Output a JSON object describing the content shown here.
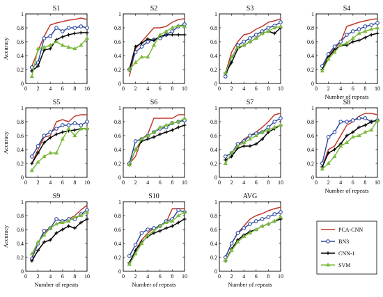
{
  "figure": {
    "y_axis_label": "Accuracy",
    "x_axis_label": "Number of repeats"
  },
  "legend": [
    {
      "name": "PCA-CNN",
      "color": "#c0392b",
      "marker": "none"
    },
    {
      "name": "BN3",
      "color": "#2e4a9e",
      "marker": "circle"
    },
    {
      "name": "CNN-1",
      "color": "#000000",
      "marker": "plus"
    },
    {
      "name": "SVM",
      "color": "#7dbb3f",
      "marker": "triangle"
    }
  ],
  "chart_data": [
    {
      "type": "line",
      "title": "S1",
      "x": [
        1,
        2,
        3,
        4,
        5,
        6,
        7,
        8,
        9,
        10
      ],
      "xlim": [
        0,
        10
      ],
      "ylim": [
        0,
        1
      ],
      "xticks": [
        "0",
        "2",
        "4",
        "6",
        "8",
        "10"
      ],
      "yticks": [
        "0",
        "0.2",
        "0.4",
        "0.6",
        "0.8",
        "1"
      ],
      "series": [
        {
          "name": "PCA-CNN",
          "values": [
            0.25,
            0.47,
            0.68,
            0.84,
            0.87,
            0.89,
            0.91,
            0.92,
            0.94,
            0.92
          ]
        },
        {
          "name": "BN3",
          "values": [
            0.23,
            0.3,
            0.65,
            0.68,
            0.8,
            0.75,
            0.8,
            0.8,
            0.82,
            0.8
          ]
        },
        {
          "name": "CNN-1",
          "values": [
            0.18,
            0.25,
            0.48,
            0.5,
            0.63,
            0.67,
            0.7,
            0.72,
            0.73,
            0.73
          ]
        },
        {
          "name": "SVM",
          "values": [
            0.1,
            0.5,
            0.52,
            0.55,
            0.6,
            0.55,
            0.52,
            0.5,
            0.55,
            0.65
          ]
        }
      ]
    },
    {
      "type": "line",
      "title": "S2",
      "x": [
        1,
        2,
        3,
        4,
        5,
        6,
        7,
        8,
        9,
        10
      ],
      "xlim": [
        0,
        10
      ],
      "ylim": [
        0,
        1
      ],
      "xticks": [
        "0",
        "2",
        "4",
        "6",
        "8",
        "10"
      ],
      "yticks": [
        "0",
        "0.2",
        "0.4",
        "0.6",
        "0.8",
        "1"
      ],
      "series": [
        {
          "name": "PCA-CNN",
          "values": [
            0.1,
            0.5,
            0.6,
            0.7,
            0.8,
            0.8,
            0.82,
            0.88,
            0.92,
            0.93
          ]
        },
        {
          "name": "BN3",
          "values": [
            0.2,
            0.45,
            0.53,
            0.6,
            0.63,
            0.65,
            0.7,
            0.75,
            0.82,
            0.85
          ]
        },
        {
          "name": "CNN-1",
          "values": [
            0.2,
            0.53,
            0.58,
            0.64,
            0.62,
            0.68,
            0.7,
            0.7,
            0.7,
            0.7
          ]
        },
        {
          "name": "SVM",
          "values": [
            0.2,
            0.3,
            0.38,
            0.38,
            0.55,
            0.7,
            0.75,
            0.8,
            0.83,
            0.82
          ]
        }
      ]
    },
    {
      "type": "line",
      "title": "S3",
      "x": [
        1,
        2,
        3,
        4,
        5,
        6,
        7,
        8,
        9,
        10
      ],
      "xlim": [
        0,
        10
      ],
      "ylim": [
        0,
        1
      ],
      "xticks": [
        "0",
        "2",
        "4",
        "6",
        "8",
        "10"
      ],
      "yticks": [
        "0",
        "0.2",
        "0.4",
        "0.6",
        "0.8",
        "1"
      ],
      "series": [
        {
          "name": "PCA-CNN",
          "values": [
            0.15,
            0.45,
            0.6,
            0.7,
            0.72,
            0.78,
            0.82,
            0.88,
            0.9,
            0.93
          ]
        },
        {
          "name": "BN3",
          "values": [
            0.1,
            0.35,
            0.55,
            0.6,
            0.65,
            0.7,
            0.75,
            0.8,
            0.83,
            0.88
          ]
        },
        {
          "name": "CNN-1",
          "values": [
            0.15,
            0.3,
            0.5,
            0.55,
            0.6,
            0.65,
            0.72,
            0.75,
            0.72,
            0.8
          ]
        },
        {
          "name": "SVM",
          "values": [
            0.15,
            0.38,
            0.52,
            0.55,
            0.6,
            0.65,
            0.72,
            0.75,
            0.8,
            0.82
          ]
        }
      ]
    },
    {
      "type": "line",
      "title": "S4",
      "x": [
        1,
        2,
        3,
        4,
        5,
        6,
        7,
        8,
        9,
        10
      ],
      "xlim": [
        0,
        10
      ],
      "ylim": [
        0,
        1
      ],
      "xticks": [
        "0",
        "2",
        "4",
        "6",
        "8",
        "10"
      ],
      "yticks": [
        "0",
        "0.2",
        "0.4",
        "0.6",
        "0.8",
        "1"
      ],
      "series": [
        {
          "name": "PCA-CNN",
          "values": [
            0.25,
            0.4,
            0.5,
            0.6,
            0.82,
            0.85,
            0.88,
            0.9,
            0.92,
            0.93
          ]
        },
        {
          "name": "BN3",
          "values": [
            0.25,
            0.42,
            0.53,
            0.6,
            0.7,
            0.75,
            0.78,
            0.82,
            0.84,
            0.87
          ]
        },
        {
          "name": "CNN-1",
          "values": [
            0.2,
            0.38,
            0.48,
            0.55,
            0.55,
            0.6,
            0.62,
            0.66,
            0.7,
            0.72
          ]
        },
        {
          "name": "SVM",
          "values": [
            0.18,
            0.35,
            0.45,
            0.55,
            0.58,
            0.65,
            0.72,
            0.75,
            0.78,
            0.8
          ]
        }
      ]
    },
    {
      "type": "line",
      "title": "S5",
      "x": [
        1,
        2,
        3,
        4,
        5,
        6,
        7,
        8,
        9,
        10
      ],
      "xlim": [
        0,
        10
      ],
      "ylim": [
        0,
        1
      ],
      "xticks": [
        "0",
        "2",
        "4",
        "6",
        "8",
        "10"
      ],
      "yticks": [
        "0",
        "0.2",
        "0.4",
        "0.6",
        "0.8",
        "1"
      ],
      "series": [
        {
          "name": "PCA-CNN",
          "values": [
            0.2,
            0.4,
            0.58,
            0.6,
            0.8,
            0.83,
            0.8,
            0.88,
            0.9,
            0.9
          ]
        },
        {
          "name": "BN3",
          "values": [
            0.3,
            0.45,
            0.6,
            0.65,
            0.7,
            0.75,
            0.75,
            0.78,
            0.75,
            0.8
          ]
        },
        {
          "name": "CNN-1",
          "values": [
            0.2,
            0.35,
            0.5,
            0.57,
            0.62,
            0.65,
            0.67,
            0.68,
            0.7,
            0.7
          ]
        },
        {
          "name": "SVM",
          "values": [
            0.1,
            0.22,
            0.3,
            0.35,
            0.35,
            0.55,
            0.7,
            0.6,
            0.7,
            0.7
          ]
        }
      ]
    },
    {
      "type": "line",
      "title": "S6",
      "x": [
        1,
        2,
        3,
        4,
        5,
        6,
        7,
        8,
        9,
        10
      ],
      "xlim": [
        0,
        10
      ],
      "ylim": [
        0,
        1
      ],
      "xticks": [
        "0",
        "2",
        "4",
        "6",
        "8",
        "10"
      ],
      "yticks": [
        "0",
        "0.2",
        "0.4",
        "0.6",
        "0.8",
        "1"
      ],
      "series": [
        {
          "name": "PCA-CNN",
          "values": [
            0.2,
            0.3,
            0.55,
            0.62,
            0.85,
            0.85,
            0.85,
            0.85,
            0.9,
            0.9
          ]
        },
        {
          "name": "BN3",
          "values": [
            0.2,
            0.52,
            0.55,
            0.6,
            0.65,
            0.7,
            0.72,
            0.78,
            0.8,
            0.82
          ]
        },
        {
          "name": "CNN-1",
          "values": [
            0.18,
            0.4,
            0.52,
            0.55,
            0.58,
            0.62,
            0.65,
            0.68,
            0.72,
            0.75
          ]
        },
        {
          "name": "SVM",
          "values": [
            0.18,
            0.4,
            0.55,
            0.6,
            0.65,
            0.72,
            0.75,
            0.78,
            0.8,
            0.85
          ]
        }
      ]
    },
    {
      "type": "line",
      "title": "S7",
      "x": [
        1,
        2,
        3,
        4,
        5,
        6,
        7,
        8,
        9,
        10
      ],
      "xlim": [
        0,
        10
      ],
      "ylim": [
        0,
        1
      ],
      "xticks": [
        "0",
        "2",
        "4",
        "6",
        "8",
        "10"
      ],
      "yticks": [
        "0",
        "0.2",
        "0.4",
        "0.6",
        "0.8",
        "1"
      ],
      "series": [
        {
          "name": "PCA-CNN",
          "values": [
            0.3,
            0.35,
            0.45,
            0.55,
            0.6,
            0.65,
            0.72,
            0.8,
            0.9,
            0.92
          ]
        },
        {
          "name": "BN3",
          "values": [
            0.3,
            0.35,
            0.48,
            0.52,
            0.6,
            0.63,
            0.65,
            0.72,
            0.8,
            0.85
          ]
        },
        {
          "name": "CNN-1",
          "values": [
            0.25,
            0.3,
            0.42,
            0.45,
            0.45,
            0.48,
            0.55,
            0.65,
            0.7,
            0.75
          ]
        },
        {
          "name": "SVM",
          "values": [
            0.2,
            0.35,
            0.45,
            0.5,
            0.55,
            0.6,
            0.65,
            0.68,
            0.72,
            0.75
          ]
        }
      ]
    },
    {
      "type": "line",
      "title": "S8",
      "x": [
        1,
        2,
        3,
        4,
        5,
        6,
        7,
        8,
        9,
        10
      ],
      "xlim": [
        0,
        10
      ],
      "ylim": [
        0,
        1
      ],
      "xticks": [
        "0",
        "2",
        "4",
        "6",
        "8",
        "10"
      ],
      "yticks": [
        "0",
        "0.2",
        "0.4",
        "0.6",
        "0.8",
        "1"
      ],
      "series": [
        {
          "name": "PCA-CNN",
          "values": [
            0.15,
            0.4,
            0.45,
            0.6,
            0.75,
            0.8,
            0.88,
            0.92,
            0.92,
            0.9
          ]
        },
        {
          "name": "BN3",
          "values": [
            0.2,
            0.58,
            0.65,
            0.8,
            0.8,
            0.82,
            0.85,
            0.85,
            0.8,
            0.82
          ]
        },
        {
          "name": "CNN-1",
          "values": [
            0.15,
            0.35,
            0.4,
            0.48,
            0.6,
            0.65,
            0.72,
            0.75,
            0.8,
            0.82
          ]
        },
        {
          "name": "SVM",
          "values": [
            0.12,
            0.2,
            0.3,
            0.45,
            0.5,
            0.58,
            0.6,
            0.65,
            0.68,
            0.82
          ]
        }
      ]
    },
    {
      "type": "line",
      "title": "S9",
      "x": [
        1,
        2,
        3,
        4,
        5,
        6,
        7,
        8,
        9,
        10
      ],
      "xlim": [
        0,
        10
      ],
      "ylim": [
        0,
        1
      ],
      "xticks": [
        "0",
        "2",
        "4",
        "6",
        "8",
        "10"
      ],
      "yticks": [
        "0",
        "0.2",
        "0.4",
        "0.6",
        "0.8",
        "1"
      ],
      "series": [
        {
          "name": "PCA-CNN",
          "values": [
            0.2,
            0.4,
            0.55,
            0.62,
            0.68,
            0.72,
            0.75,
            0.8,
            0.88,
            0.95
          ]
        },
        {
          "name": "BN3",
          "values": [
            0.18,
            0.4,
            0.58,
            0.62,
            0.75,
            0.72,
            0.75,
            0.75,
            0.82,
            0.88
          ]
        },
        {
          "name": "CNN-1",
          "values": [
            0.15,
            0.3,
            0.42,
            0.45,
            0.55,
            0.6,
            0.65,
            0.62,
            0.7,
            0.75
          ]
        },
        {
          "name": "SVM",
          "values": [
            0.25,
            0.42,
            0.52,
            0.62,
            0.68,
            0.7,
            0.72,
            0.78,
            0.8,
            0.85
          ]
        }
      ]
    },
    {
      "type": "line",
      "title": "S10",
      "x": [
        1,
        2,
        3,
        4,
        5,
        6,
        7,
        8,
        9,
        10
      ],
      "xlim": [
        0,
        10
      ],
      "ylim": [
        0,
        1
      ],
      "xticks": [
        "0",
        "2",
        "4",
        "6",
        "8",
        "10"
      ],
      "yticks": [
        "0",
        "0.2",
        "0.4",
        "0.6",
        "0.8",
        "1"
      ],
      "series": [
        {
          "name": "PCA-CNN",
          "values": [
            0.12,
            0.3,
            0.45,
            0.55,
            0.62,
            0.65,
            0.7,
            0.9,
            0.9,
            0.9
          ]
        },
        {
          "name": "BN3",
          "values": [
            0.22,
            0.38,
            0.55,
            0.6,
            0.62,
            0.65,
            0.72,
            0.75,
            0.88,
            0.85
          ]
        },
        {
          "name": "CNN-1",
          "values": [
            0.12,
            0.3,
            0.42,
            0.5,
            0.55,
            0.58,
            0.62,
            0.65,
            0.7,
            0.75
          ]
        },
        {
          "name": "SVM",
          "values": [
            0.1,
            0.25,
            0.4,
            0.52,
            0.58,
            0.65,
            0.7,
            0.72,
            0.8,
            0.85
          ]
        }
      ]
    },
    {
      "type": "line",
      "title": "AVG",
      "x": [
        1,
        2,
        3,
        4,
        5,
        6,
        7,
        8,
        9,
        10
      ],
      "xlim": [
        0,
        10
      ],
      "ylim": [
        0,
        1
      ],
      "xticks": [
        "0",
        "2",
        "4",
        "6",
        "8",
        "10"
      ],
      "yticks": [
        "0",
        "0.2",
        "0.4",
        "0.6",
        "0.8",
        "1"
      ],
      "series": [
        {
          "name": "PCA-CNN",
          "values": [
            0.2,
            0.4,
            0.55,
            0.65,
            0.75,
            0.8,
            0.83,
            0.87,
            0.9,
            0.92
          ]
        },
        {
          "name": "BN3",
          "values": [
            0.2,
            0.4,
            0.55,
            0.62,
            0.68,
            0.72,
            0.75,
            0.78,
            0.82,
            0.85
          ]
        },
        {
          "name": "CNN-1",
          "values": [
            0.15,
            0.32,
            0.45,
            0.52,
            0.57,
            0.6,
            0.65,
            0.68,
            0.72,
            0.75
          ]
        },
        {
          "name": "SVM",
          "values": [
            0.15,
            0.3,
            0.42,
            0.5,
            0.55,
            0.6,
            0.65,
            0.68,
            0.72,
            0.78
          ]
        }
      ]
    }
  ]
}
